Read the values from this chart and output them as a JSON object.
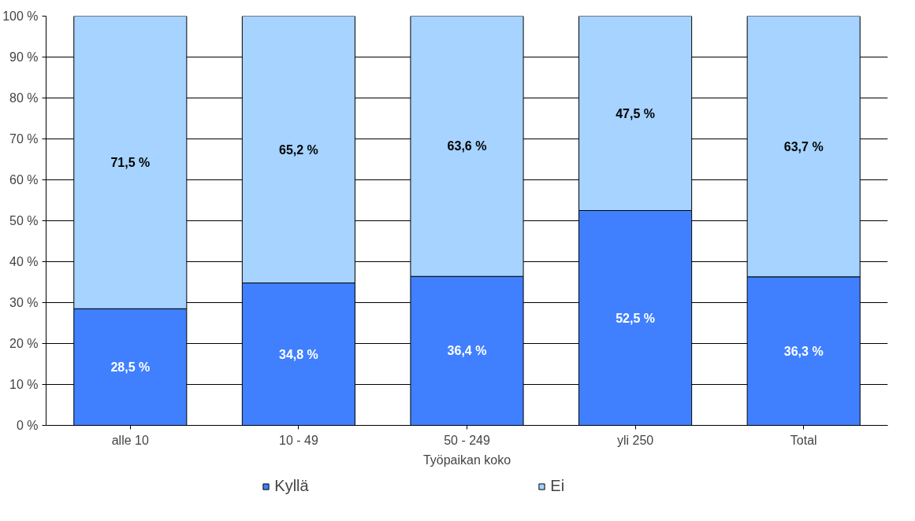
{
  "chart_data": {
    "type": "bar",
    "stacked": true,
    "xlabel": "Työpaikan koko",
    "categories": [
      "alle 10",
      "10 - 49",
      "50 - 249",
      "yli 250",
      "Total"
    ],
    "series": [
      {
        "name": "Kyllä",
        "color": "#4080ff",
        "values": [
          28.5,
          34.8,
          36.4,
          52.5,
          36.3
        ],
        "value_labels": [
          "28,5 %",
          "34,8 %",
          "36,4 %",
          "52,5 %",
          "36,3 %"
        ]
      },
      {
        "name": "Ei",
        "color": "#a6d3ff",
        "values": [
          71.5,
          65.2,
          63.6,
          47.5,
          63.7
        ],
        "value_labels": [
          "71,5 %",
          "65,2 %",
          "63,6 %",
          "47,5 %",
          "63,7 %"
        ]
      }
    ],
    "ylim": [
      0,
      100
    ],
    "yticks": [
      {
        "value": 0,
        "label": "0 %"
      },
      {
        "value": 10,
        "label": "10 %"
      },
      {
        "value": 20,
        "label": "20 %"
      },
      {
        "value": 30,
        "label": "30 %"
      },
      {
        "value": 40,
        "label": "40 %"
      },
      {
        "value": 50,
        "label": "50 %"
      },
      {
        "value": 60,
        "label": "60 %"
      },
      {
        "value": 70,
        "label": "70 %"
      },
      {
        "value": 80,
        "label": "80 %"
      },
      {
        "value": 90,
        "label": "90 %"
      },
      {
        "value": 100,
        "label": "100 %"
      }
    ],
    "grid": "y",
    "legend": "bottom"
  }
}
